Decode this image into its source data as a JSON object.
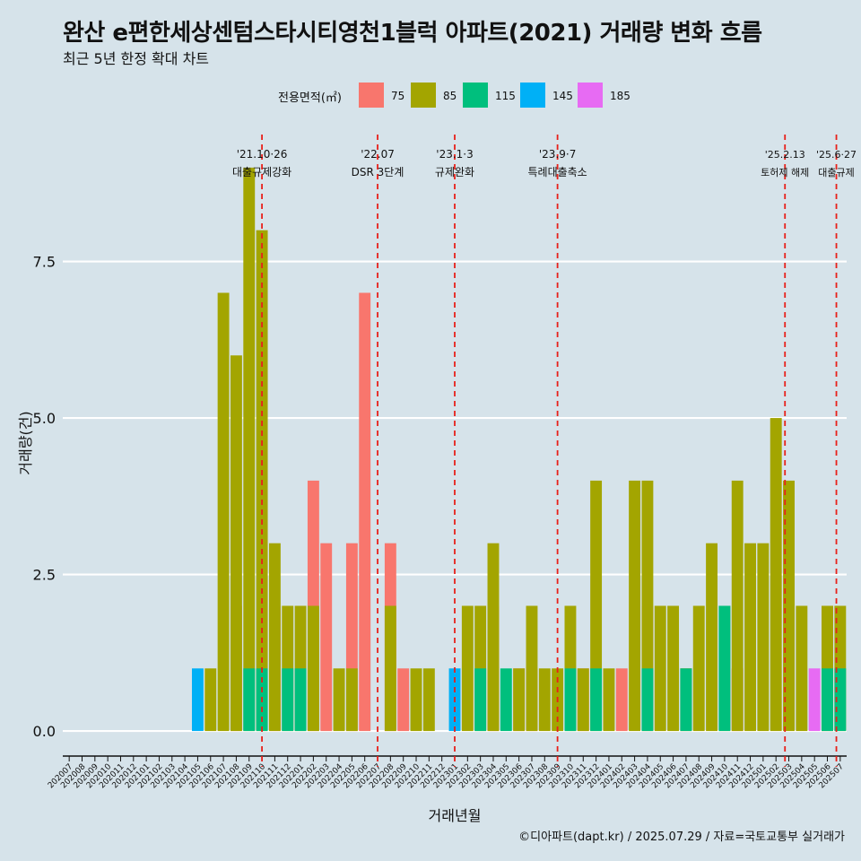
{
  "chart_data": {
    "type": "bar",
    "title": "완산 e편한세상센텀스타시티영천1블럭 아파트(2021) 거래량 변화 흐름",
    "subtitle": "최근 5년 한정 확대 차트",
    "xlabel": "거래년월",
    "ylabel": "거래량(건)",
    "ylim": [
      -0.4,
      9.6
    ],
    "yticks": [
      0.0,
      2.5,
      5.0,
      7.5
    ],
    "ytick_labels": [
      "0.0",
      "2.5",
      "5.0",
      "7.5"
    ],
    "grid": true,
    "legend": {
      "title": "전용면적(㎡)",
      "position": "top",
      "entries": [
        {
          "name": "75",
          "color": "#f8766d"
        },
        {
          "name": "85",
          "color": "#a3a500"
        },
        {
          "name": "115",
          "color": "#00bf7d"
        },
        {
          "name": "145",
          "color": "#00b0f6"
        },
        {
          "name": "185",
          "color": "#e76bf3"
        }
      ]
    },
    "categories": [
      "202007",
      "202008",
      "202009",
      "202010",
      "202011",
      "202012",
      "202101",
      "202102",
      "202103",
      "202104",
      "202105",
      "202106",
      "202107",
      "202108",
      "202109",
      "202110",
      "202111",
      "202112",
      "202201",
      "202202",
      "202203",
      "202204",
      "202205",
      "202206",
      "202207",
      "202208",
      "202209",
      "202210",
      "202211",
      "202212",
      "202301",
      "202302",
      "202303",
      "202304",
      "202305",
      "202306",
      "202307",
      "202308",
      "202309",
      "202310",
      "202311",
      "202312",
      "202401",
      "202402",
      "202403",
      "202404",
      "202405",
      "202406",
      "202407",
      "202408",
      "202409",
      "202410",
      "202411",
      "202412",
      "202501",
      "202502",
      "202503",
      "202504",
      "202505",
      "202506",
      "202507"
    ],
    "series": [
      {
        "name": "75",
        "color": "#f8766d",
        "values": [
          0,
          0,
          0,
          0,
          0,
          0,
          0,
          0,
          0,
          0,
          0,
          0,
          0,
          2,
          0,
          0,
          2,
          0,
          0,
          4,
          3,
          0,
          3,
          7,
          0,
          3,
          1,
          0,
          0,
          0,
          0,
          0,
          0,
          2,
          0,
          1,
          1,
          0,
          0,
          0,
          1,
          0,
          0,
          1,
          0,
          2,
          0,
          0,
          1,
          0,
          0,
          0,
          1,
          0,
          0,
          0,
          0,
          0,
          0,
          2,
          0
        ]
      },
      {
        "name": "85",
        "color": "#a3a500",
        "values": [
          0,
          0,
          0,
          0,
          0,
          0,
          0,
          0,
          0,
          0,
          0,
          1,
          7,
          6,
          9,
          8,
          3,
          2,
          2,
          2,
          0,
          1,
          1,
          0,
          0,
          2,
          0,
          1,
          1,
          0,
          0,
          2,
          2,
          3,
          0,
          1,
          2,
          1,
          1,
          2,
          1,
          4,
          1,
          0,
          4,
          4,
          2,
          2,
          1,
          2,
          3,
          2,
          4,
          3,
          3,
          5,
          4,
          2,
          0,
          2,
          2
        ]
      },
      {
        "name": "115",
        "color": "#00bf7d",
        "values": [
          0,
          0,
          0,
          0,
          0,
          0,
          0,
          0,
          0,
          0,
          0,
          0,
          0,
          0,
          1,
          1,
          0,
          1,
          1,
          0,
          0,
          0,
          0,
          0,
          0,
          0,
          0,
          0,
          0,
          0,
          0,
          0,
          1,
          0,
          1,
          0,
          0,
          0,
          0,
          1,
          0,
          1,
          0,
          0,
          0,
          1,
          0,
          0,
          1,
          0,
          0,
          2,
          0,
          0,
          0,
          0,
          0,
          0,
          0,
          1,
          1
        ]
      },
      {
        "name": "145",
        "color": "#00b0f6",
        "values": [
          0,
          0,
          0,
          0,
          0,
          0,
          0,
          0,
          0,
          0,
          1,
          0,
          0,
          0,
          0,
          0,
          0,
          0,
          0,
          0,
          0,
          0,
          0,
          0,
          0,
          0,
          0,
          0,
          0,
          0,
          1,
          0,
          0,
          0,
          0,
          0,
          0,
          0,
          0,
          0,
          0,
          0,
          0,
          0,
          0,
          0,
          0,
          0,
          0,
          0,
          0,
          0,
          0,
          0,
          0,
          0,
          0,
          0,
          0,
          0,
          0
        ]
      },
      {
        "name": "185",
        "color": "#e76bf3",
        "values": [
          0,
          0,
          0,
          0,
          0,
          0,
          0,
          0,
          0,
          0,
          0,
          0,
          0,
          0,
          0,
          0,
          0,
          0,
          0,
          0,
          0,
          0,
          0,
          0,
          0,
          0,
          0,
          0,
          0,
          0,
          0,
          0,
          0,
          0,
          0,
          0,
          0,
          0,
          0,
          0,
          0,
          0,
          0,
          0,
          0,
          0,
          0,
          0,
          0,
          0,
          0,
          0,
          0,
          0,
          0,
          0,
          0,
          0,
          1,
          0,
          0
        ]
      }
    ],
    "events": [
      {
        "at": 15,
        "date": "'21.10·26",
        "label": "대출규제강화"
      },
      {
        "at": 24,
        "date": "'22.07",
        "label": "DSR 3단계"
      },
      {
        "at": 30,
        "date": "'23.1·3",
        "label": "규제완화"
      },
      {
        "at": 38,
        "date": "'23.9·7",
        "label": "특례대출축소"
      },
      {
        "at": 55.7,
        "date": "'25.2.13",
        "label": "토허제 해제"
      },
      {
        "at": 59.7,
        "date": "'25.6·27",
        "label": "대출규제"
      }
    ],
    "event_line_color": "#e8201a"
  },
  "caption": "©디아파트(dapt.kr) / 2025.07.29 / 자료=국토교통부 실거래가"
}
